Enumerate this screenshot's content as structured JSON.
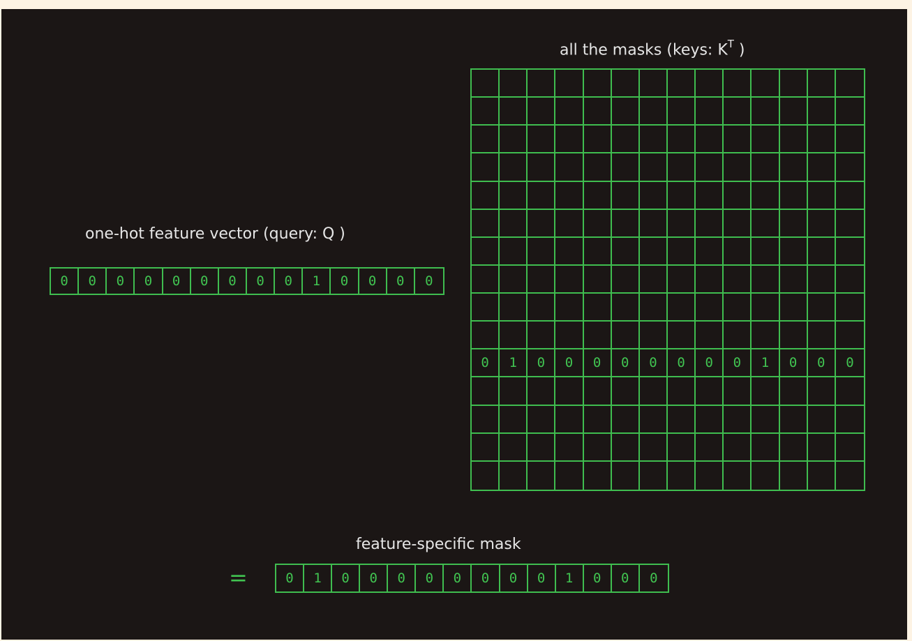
{
  "labels": {
    "keys_prefix": "all the masks (keys: K",
    "keys_sup": "T",
    "keys_suffix": " )",
    "query": "one-hot feature vector (query: Q )",
    "result": "feature-specific mask",
    "equals": "="
  },
  "query_vector": [
    "0",
    "0",
    "0",
    "0",
    "0",
    "0",
    "0",
    "0",
    "0",
    "1",
    "0",
    "0",
    "0",
    "0"
  ],
  "keys_matrix": {
    "rows": 15,
    "cols": 14,
    "filled_row_index": 10,
    "filled_row": [
      "0",
      "1",
      "0",
      "0",
      "0",
      "0",
      "0",
      "0",
      "0",
      "0",
      "1",
      "0",
      "0",
      "0"
    ]
  },
  "result_vector": [
    "0",
    "1",
    "0",
    "0",
    "0",
    "0",
    "0",
    "0",
    "0",
    "0",
    "1",
    "0",
    "0",
    "0"
  ],
  "colors": {
    "background": "#1b1615",
    "frame": "#fdf3e4",
    "grid_line": "#3fbd4f",
    "digit": "#41c451",
    "label_text": "#e6e6e6"
  }
}
